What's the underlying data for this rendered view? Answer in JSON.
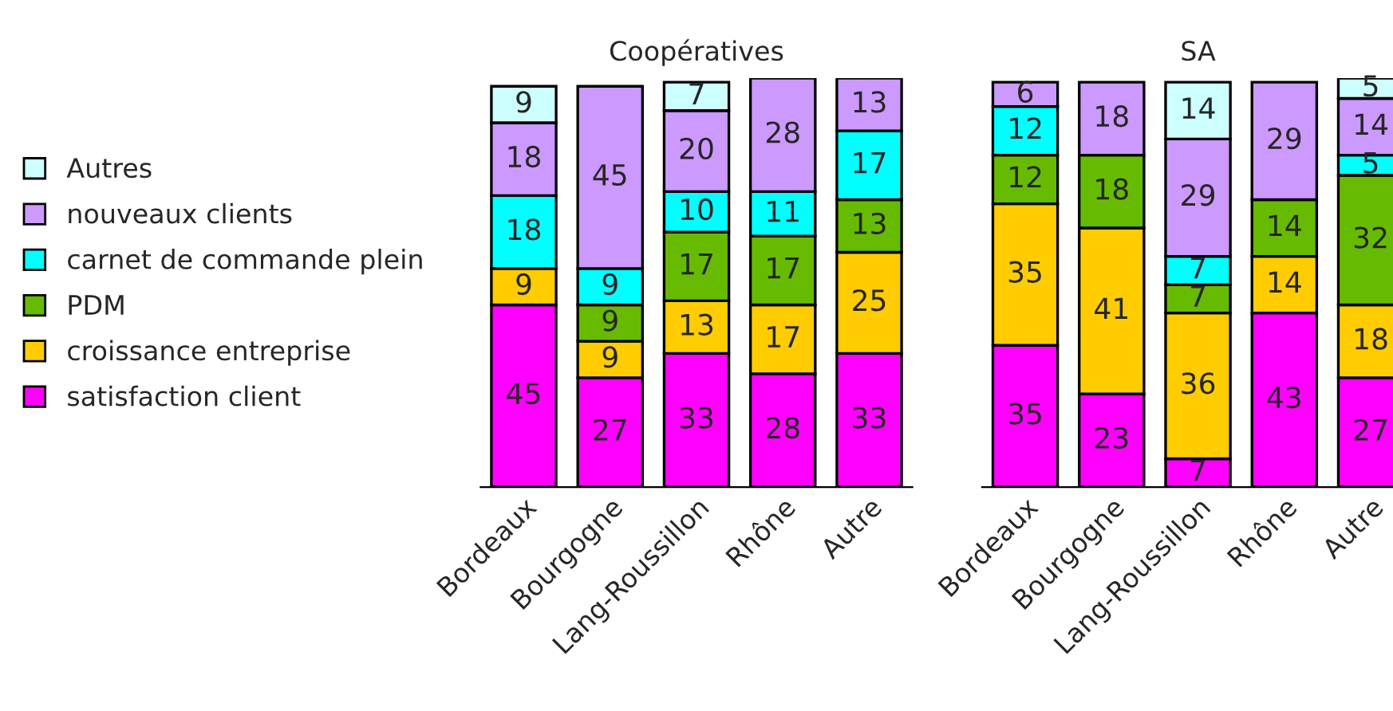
{
  "chart_data": [
    {
      "type": "bar",
      "title": "Coopératives",
      "stacked": true,
      "data_labels": true,
      "legend": "left",
      "grid": false,
      "tick_labels": "x",
      "categories": [
        "Bordeaux",
        "Bourgogne",
        "Lang-Roussillon",
        "Rhône",
        "Autre"
      ],
      "series": [
        {
          "name": "satisfaction client",
          "color": "#ff00ff",
          "values": [
            45,
            27,
            33,
            28,
            33
          ]
        },
        {
          "name": "croissance entreprise",
          "color": "#ffcc00",
          "values": [
            9,
            9,
            13,
            17,
            25
          ]
        },
        {
          "name": "PDM",
          "color": "#66bb00",
          "values": [
            null,
            9,
            17,
            17,
            13
          ]
        },
        {
          "name": "carnet de commande plein",
          "color": "#00ffff",
          "values": [
            18,
            9,
            10,
            11,
            17
          ]
        },
        {
          "name": "nouveaux clients",
          "color": "#cc99ff",
          "values": [
            18,
            45,
            20,
            28,
            13
          ]
        },
        {
          "name": "Autres",
          "color": "#ccffff",
          "values": [
            9,
            null,
            7,
            null,
            null
          ]
        }
      ]
    },
    {
      "type": "bar",
      "title": "SA",
      "stacked": true,
      "data_labels": true,
      "grid": false,
      "tick_labels": "x",
      "categories": [
        "Bordeaux",
        "Bourgogne",
        "Lang-Roussillon",
        "Rhône",
        "Autre"
      ],
      "series": [
        {
          "color": "#ff00ff",
          "values": [
            35,
            23,
            7,
            43,
            27
          ]
        },
        {
          "color": "#ffcc00",
          "values": [
            35,
            41,
            36,
            14,
            18
          ]
        },
        {
          "color": "#66bb00",
          "values": [
            12,
            18,
            7,
            14,
            32
          ]
        },
        {
          "color": "#00ffff",
          "values": [
            12,
            null,
            7,
            null,
            5
          ]
        },
        {
          "color": "#cc99ff",
          "values": [
            6,
            18,
            29,
            29,
            14
          ]
        },
        {
          "color": "#ccffff",
          "values": [
            null,
            null,
            14,
            null,
            5
          ]
        }
      ]
    }
  ]
}
